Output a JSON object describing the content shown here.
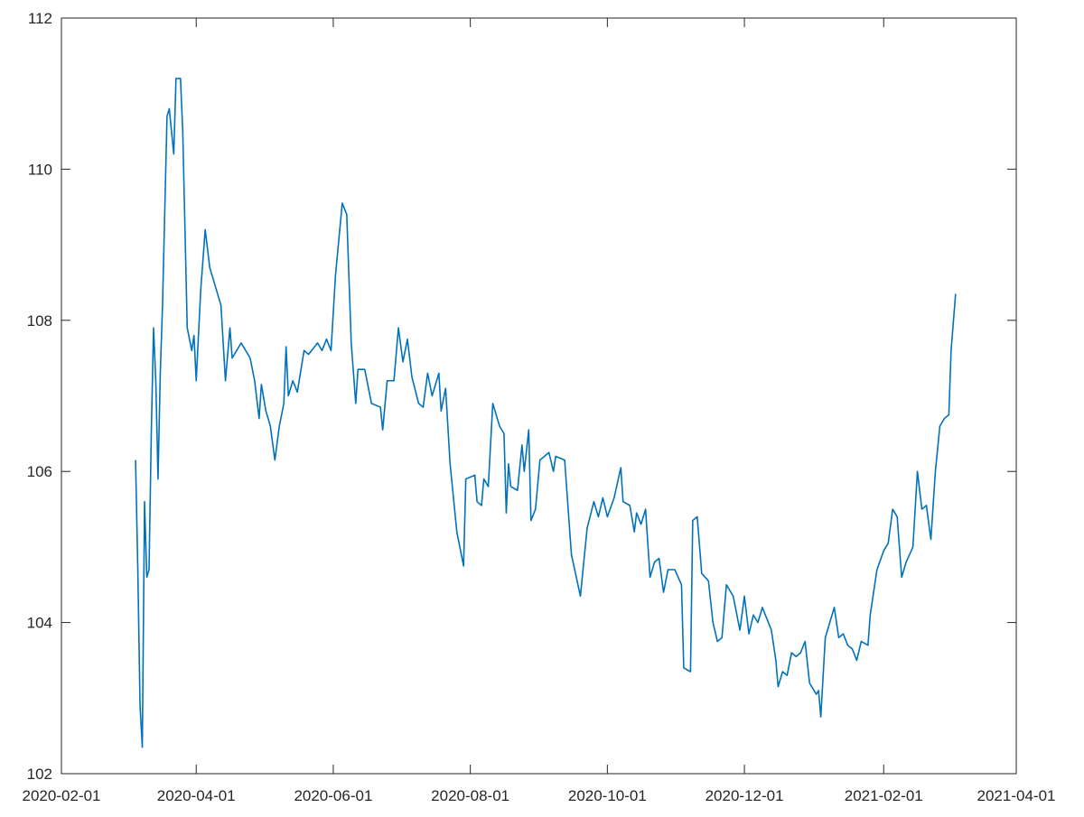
{
  "chart_data": {
    "type": "line",
    "color": "#0072bd",
    "xlim": [
      "2020-02-01",
      "2021-04-01"
    ],
    "xticks": [
      "2020-02-01",
      "2020-04-01",
      "2020-06-01",
      "2020-08-01",
      "2020-10-01",
      "2020-12-01",
      "2021-02-01",
      "2021-04-01"
    ],
    "ylim": [
      102,
      112
    ],
    "yticks": [
      102,
      104,
      106,
      108,
      110,
      112
    ],
    "grid": false,
    "x": [
      "2020-03-05",
      "2020-03-06",
      "2020-03-07",
      "2020-03-08",
      "2020-03-09",
      "2020-03-10",
      "2020-03-11",
      "2020-03-12",
      "2020-03-13",
      "2020-03-14",
      "2020-03-15",
      "2020-03-16",
      "2020-03-17",
      "2020-03-19",
      "2020-03-20",
      "2020-03-22",
      "2020-03-23",
      "2020-03-25",
      "2020-03-26",
      "2020-03-28",
      "2020-03-30",
      "2020-03-31",
      "2020-04-01",
      "2020-04-03",
      "2020-04-05",
      "2020-04-07",
      "2020-04-09",
      "2020-04-12",
      "2020-04-14",
      "2020-04-16",
      "2020-04-17",
      "2020-04-21",
      "2020-04-25",
      "2020-04-27",
      "2020-04-29",
      "2020-04-30",
      "2020-05-02",
      "2020-05-04",
      "2020-05-06",
      "2020-05-08",
      "2020-05-10",
      "2020-05-11",
      "2020-05-12",
      "2020-05-14",
      "2020-05-16",
      "2020-05-19",
      "2020-05-21",
      "2020-05-25",
      "2020-05-27",
      "2020-05-29",
      "2020-05-31",
      "2020-06-02",
      "2020-06-05",
      "2020-06-07",
      "2020-06-09",
      "2020-06-11",
      "2020-06-12",
      "2020-06-15",
      "2020-06-18",
      "2020-06-22",
      "2020-06-23",
      "2020-06-25",
      "2020-06-28",
      "2020-06-30",
      "2020-07-02",
      "2020-07-04",
      "2020-07-06",
      "2020-07-09",
      "2020-07-11",
      "2020-07-13",
      "2020-07-15",
      "2020-07-18",
      "2020-07-19",
      "2020-07-21",
      "2020-07-23",
      "2020-07-26",
      "2020-07-29",
      "2020-07-30",
      "2020-08-03",
      "2020-08-04",
      "2020-08-06",
      "2020-08-07",
      "2020-08-09",
      "2020-08-11",
      "2020-08-14",
      "2020-08-16",
      "2020-08-17",
      "2020-08-18",
      "2020-08-19",
      "2020-08-22",
      "2020-08-24",
      "2020-08-25",
      "2020-08-27",
      "2020-08-28",
      "2020-08-30",
      "2020-09-01",
      "2020-09-05",
      "2020-09-07",
      "2020-09-08",
      "2020-09-12",
      "2020-09-15",
      "2020-09-19",
      "2020-09-22",
      "2020-09-25",
      "2020-09-27",
      "2020-09-29",
      "2020-10-01",
      "2020-10-04",
      "2020-10-07",
      "2020-10-08",
      "2020-10-11",
      "2020-10-13",
      "2020-10-14",
      "2020-10-16",
      "2020-10-18",
      "2020-10-20",
      "2020-10-22",
      "2020-10-24",
      "2020-10-26",
      "2020-10-28",
      "2020-10-31",
      "2020-11-03",
      "2020-11-04",
      "2020-11-07",
      "2020-11-08",
      "2020-11-10",
      "2020-11-12",
      "2020-11-15",
      "2020-11-17",
      "2020-11-19",
      "2020-11-21",
      "2020-11-23",
      "2020-11-26",
      "2020-11-29",
      "2020-12-01",
      "2020-12-03",
      "2020-12-05",
      "2020-12-07",
      "2020-12-09",
      "2020-12-11",
      "2020-12-13",
      "2020-12-15",
      "2020-12-16",
      "2020-12-18",
      "2020-12-20",
      "2020-12-22",
      "2020-12-24",
      "2020-12-26",
      "2020-12-28",
      "2020-12-30",
      "2021-01-02",
      "2021-01-03",
      "2021-01-04",
      "2021-01-06",
      "2021-01-10",
      "2021-01-12",
      "2021-01-14",
      "2021-01-16",
      "2021-01-18",
      "2021-01-20",
      "2021-01-22",
      "2021-01-25",
      "2021-01-26",
      "2021-01-29",
      "2021-02-01",
      "2021-02-03",
      "2021-02-05",
      "2021-02-07",
      "2021-02-09",
      "2021-02-11",
      "2021-02-14",
      "2021-02-16",
      "2021-02-18",
      "2021-02-20",
      "2021-02-22",
      "2021-02-24",
      "2021-02-26",
      "2021-02-28",
      "2021-03-02",
      "2021-03-03",
      "2021-03-05"
    ],
    "values": [
      106.15,
      104.7,
      102.9,
      102.35,
      105.6,
      104.6,
      104.7,
      106.5,
      107.9,
      107.2,
      105.9,
      107.3,
      108.2,
      110.7,
      110.8,
      110.2,
      111.2,
      111.2,
      110.5,
      107.9,
      107.6,
      107.8,
      107.2,
      108.4,
      109.2,
      108.7,
      108.5,
      108.2,
      107.2,
      107.9,
      107.5,
      107.7,
      107.5,
      107.2,
      106.7,
      107.15,
      106.8,
      106.6,
      106.15,
      106.6,
      106.9,
      107.65,
      107.0,
      107.2,
      107.05,
      107.6,
      107.55,
      107.7,
      107.6,
      107.75,
      107.6,
      108.6,
      109.55,
      109.4,
      107.7,
      106.9,
      107.35,
      107.35,
      106.9,
      106.85,
      106.55,
      107.2,
      107.2,
      107.9,
      107.45,
      107.75,
      107.25,
      106.9,
      106.85,
      107.3,
      107.0,
      107.3,
      106.8,
      107.1,
      106.1,
      105.2,
      104.75,
      105.9,
      105.95,
      105.6,
      105.55,
      105.9,
      105.8,
      106.9,
      106.6,
      106.5,
      105.45,
      106.1,
      105.8,
      105.75,
      106.35,
      106.0,
      106.55,
      105.35,
      105.5,
      106.15,
      106.25,
      106.0,
      106.2,
      106.15,
      104.9,
      104.35,
      105.25,
      105.6,
      105.4,
      105.65,
      105.4,
      105.65,
      106.05,
      105.6,
      105.55,
      105.2,
      105.45,
      105.3,
      105.5,
      104.6,
      104.8,
      104.85,
      104.4,
      104.7,
      104.7,
      104.5,
      103.4,
      103.35,
      105.35,
      105.4,
      104.65,
      104.55,
      104.0,
      103.75,
      103.8,
      104.5,
      104.35,
      103.9,
      104.35,
      103.85,
      104.1,
      104.0,
      104.2,
      104.05,
      103.9,
      103.5,
      103.15,
      103.35,
      103.3,
      103.6,
      103.55,
      103.6,
      103.75,
      103.2,
      103.05,
      103.1,
      102.75,
      103.8,
      104.2,
      103.8,
      103.85,
      103.7,
      103.65,
      103.5,
      103.75,
      103.7,
      104.1,
      104.7,
      104.95,
      105.05,
      105.5,
      105.4,
      104.6,
      104.8,
      105.0,
      106.0,
      105.5,
      105.55,
      105.1,
      106.0,
      106.6,
      106.7,
      106.75,
      107.6,
      108.35
    ]
  }
}
